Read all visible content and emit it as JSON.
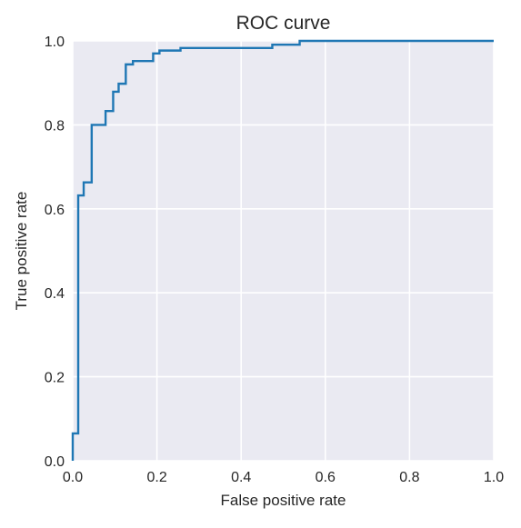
{
  "chart_data": {
    "type": "line",
    "title": "ROC curve",
    "xlabel": "False positive rate",
    "ylabel": "True positive rate",
    "xlim": [
      0,
      1
    ],
    "ylim": [
      0,
      1
    ],
    "xticks": [
      {
        "value": 0.0,
        "label": "0.0"
      },
      {
        "value": 0.2,
        "label": "0.2"
      },
      {
        "value": 0.4,
        "label": "0.4"
      },
      {
        "value": 0.6,
        "label": "0.6"
      },
      {
        "value": 0.8,
        "label": "0.8"
      },
      {
        "value": 1.0,
        "label": "1.0"
      }
    ],
    "yticks": [
      {
        "value": 0.0,
        "label": "0.0"
      },
      {
        "value": 0.2,
        "label": "0.2"
      },
      {
        "value": 0.4,
        "label": "0.4"
      },
      {
        "value": 0.6,
        "label": "0.6"
      },
      {
        "value": 0.8,
        "label": "0.8"
      },
      {
        "value": 1.0,
        "label": "1.0"
      }
    ],
    "grid": true,
    "legend": null,
    "colors": {
      "background": "#eaeaf2",
      "grid": "#ffffff",
      "line": "#1f77b4"
    },
    "series": [
      {
        "x": [
          0.0,
          0.0,
          0.013,
          0.013,
          0.026,
          0.026,
          0.045,
          0.045,
          0.078,
          0.078,
          0.096,
          0.096,
          0.109,
          0.109,
          0.126,
          0.126,
          0.143,
          0.143,
          0.191,
          0.191,
          0.206,
          0.206,
          0.256,
          0.256,
          0.474,
          0.474,
          0.539,
          0.539,
          1.0
        ],
        "y": [
          0.0,
          0.065,
          0.065,
          0.632,
          0.632,
          0.663,
          0.663,
          0.8,
          0.8,
          0.833,
          0.833,
          0.879,
          0.879,
          0.898,
          0.898,
          0.944,
          0.944,
          0.952,
          0.952,
          0.97,
          0.97,
          0.977,
          0.977,
          0.983,
          0.983,
          0.991,
          0.991,
          1.0,
          1.0
        ]
      }
    ]
  }
}
